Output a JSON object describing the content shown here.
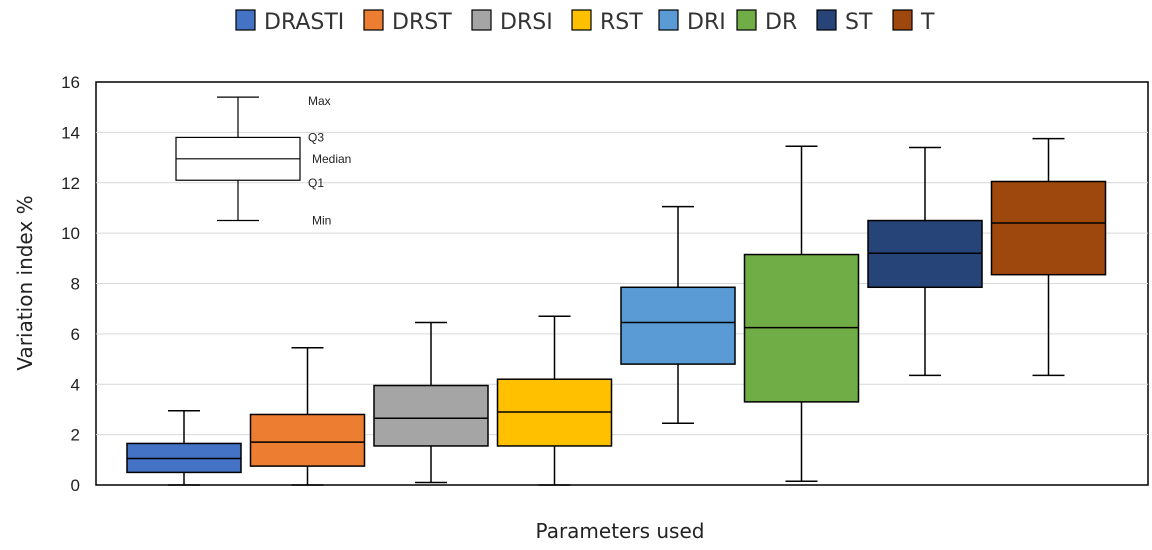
{
  "chart_data": {
    "type": "box",
    "xlabel": "Parameters used",
    "ylabel": "Variation index %",
    "ylim": [
      0,
      16
    ],
    "yticks": [
      0,
      2,
      4,
      6,
      8,
      10,
      12,
      14,
      16
    ],
    "grid": true,
    "legend_position": "top",
    "series": [
      {
        "name": "DRASTI",
        "color": "#4472C4",
        "min": 0.0,
        "q1": 0.5,
        "median": 1.05,
        "q3": 1.65,
        "max": 2.95
      },
      {
        "name": "DRST",
        "color": "#ED7D31",
        "min": 0.0,
        "q1": 0.75,
        "median": 1.7,
        "q3": 2.8,
        "max": 5.45
      },
      {
        "name": "DRSI",
        "color": "#A5A5A5",
        "min": 0.1,
        "q1": 1.55,
        "median": 2.65,
        "q3": 3.95,
        "max": 6.45
      },
      {
        "name": "RST",
        "color": "#FFC000",
        "min": 0.0,
        "q1": 1.55,
        "median": 2.9,
        "q3": 4.2,
        "max": 6.7
      },
      {
        "name": "DRI",
        "color": "#5B9BD5",
        "min": 2.45,
        "q1": 4.8,
        "median": 6.45,
        "q3": 7.85,
        "max": 11.05
      },
      {
        "name": "DR",
        "color": "#70AD47",
        "min": 0.15,
        "q1": 3.3,
        "median": 6.25,
        "q3": 9.15,
        "max": 13.45
      },
      {
        "name": "ST",
        "color": "#264478",
        "min": 4.35,
        "q1": 7.85,
        "median": 9.2,
        "q3": 10.5,
        "max": 13.4
      },
      {
        "name": "T",
        "color": "#9E480E",
        "min": 4.35,
        "q1": 8.35,
        "median": 10.4,
        "q3": 12.05,
        "max": 13.75
      }
    ],
    "key_box": {
      "min": 10.5,
      "q1": 12.1,
      "median": 12.95,
      "q3": 13.8,
      "max": 15.4,
      "labels": {
        "max": "Max",
        "q3": "Q3",
        "median": "Median",
        "q1": "Q1",
        "min": "Min"
      }
    }
  }
}
